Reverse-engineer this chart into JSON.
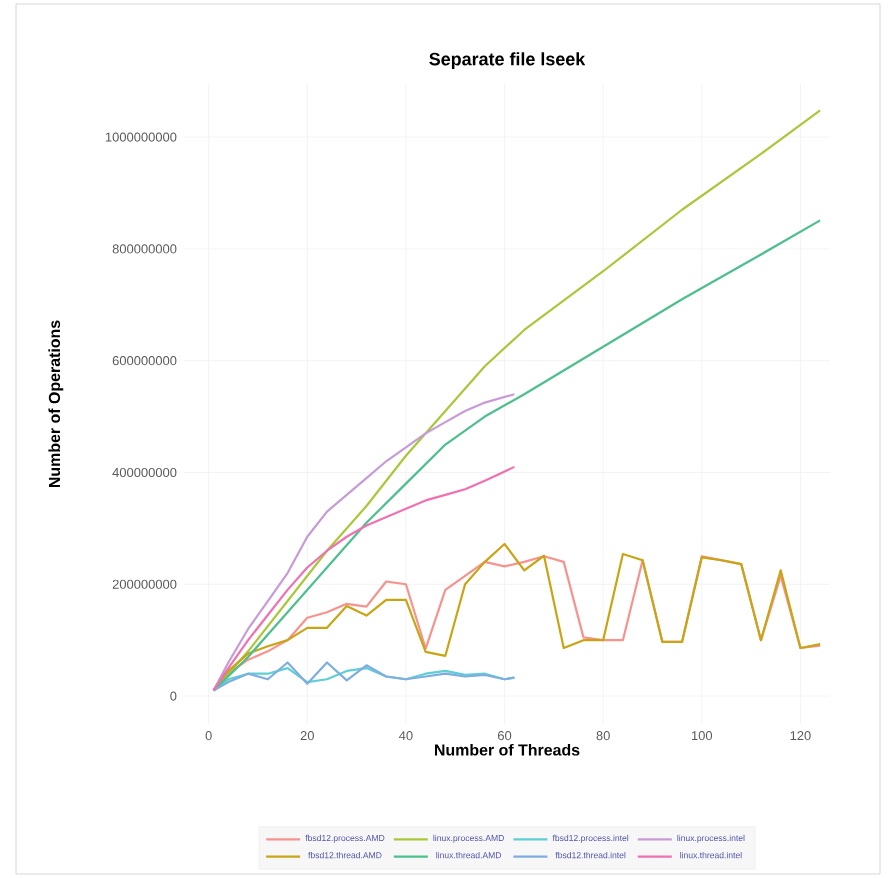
{
  "chart_data": {
    "type": "line",
    "title": "Separate file lseek",
    "xlabel": "Number of Threads",
    "ylabel": "Number of Operations",
    "xlim": [
      -5,
      126
    ],
    "ylim": [
      -50000000,
      1095000000
    ],
    "xticks": [
      0,
      20,
      40,
      60,
      80,
      100,
      120
    ],
    "yticks": [
      0,
      200000000,
      400000000,
      600000000,
      800000000,
      1000000000
    ],
    "grid": true,
    "legend": "bottom",
    "series": [
      {
        "name": "fbsd12.process.AMD",
        "color": "#f7938c",
        "x": [
          1,
          4,
          8,
          12,
          16,
          20,
          24,
          28,
          32,
          36,
          40,
          44,
          48,
          52,
          56,
          60,
          64,
          68,
          72,
          76,
          80,
          84,
          88,
          92,
          96,
          100,
          104,
          108,
          112,
          116,
          120,
          124
        ],
        "values": [
          10000000,
          40000000,
          65000000,
          80000000,
          100000000,
          140000000,
          150000000,
          165000000,
          160000000,
          205000000,
          200000000,
          85000000,
          190000000,
          215000000,
          240000000,
          232000000,
          240000000,
          250000000,
          240000000,
          105000000,
          100000000,
          100000000,
          243000000,
          97000000,
          97000000,
          250000000,
          243000000,
          236000000,
          100000000,
          215000000,
          86000000,
          90000000
        ]
      },
      {
        "name": "linux.process.AMD",
        "color": "#a8c83a",
        "x": [
          1,
          8,
          16,
          24,
          32,
          40,
          48,
          56,
          64,
          80,
          96,
          112,
          124
        ],
        "values": [
          10000000,
          80000000,
          170000000,
          260000000,
          340000000,
          430000000,
          510000000,
          590000000,
          655000000,
          760000000,
          870000000,
          970000000,
          1048000000
        ]
      },
      {
        "name": "fbsd12.process.intel",
        "color": "#5fcfd3",
        "x": [
          1,
          4,
          8,
          12,
          16,
          20,
          24,
          28,
          32,
          36,
          40,
          44,
          48,
          52,
          56,
          60,
          62
        ],
        "values": [
          10000000,
          30000000,
          40000000,
          40000000,
          50000000,
          25000000,
          30000000,
          45000000,
          50000000,
          35000000,
          30000000,
          40000000,
          45000000,
          38000000,
          40000000,
          30000000,
          33000000
        ]
      },
      {
        "name": "linux.process.intel",
        "color": "#c79ad8",
        "x": [
          1,
          4,
          8,
          12,
          16,
          20,
          24,
          28,
          32,
          36,
          40,
          44,
          48,
          52,
          56,
          62
        ],
        "values": [
          10000000,
          60000000,
          120000000,
          170000000,
          220000000,
          285000000,
          330000000,
          360000000,
          390000000,
          420000000,
          445000000,
          470000000,
          490000000,
          510000000,
          525000000,
          540000000
        ]
      },
      {
        "name": "fbsd12.thread.AMD",
        "color": "#c9a415",
        "x": [
          1,
          4,
          8,
          12,
          16,
          20,
          24,
          28,
          32,
          36,
          40,
          44,
          48,
          52,
          56,
          60,
          64,
          68,
          72,
          76,
          80,
          84,
          88,
          92,
          96,
          100,
          104,
          108,
          112,
          116,
          120,
          124
        ],
        "values": [
          11000000,
          45000000,
          76000000,
          89000000,
          100000000,
          122000000,
          122000000,
          161000000,
          144000000,
          172000000,
          172000000,
          79000000,
          72000000,
          200000000,
          240000000,
          272000000,
          225000000,
          251000000,
          86000000,
          100000000,
          100000000,
          254000000,
          243000000,
          97000000,
          97000000,
          248000000,
          243000000,
          236000000,
          100000000,
          225000000,
          86000000,
          93000000
        ]
      },
      {
        "name": "linux.thread.AMD",
        "color": "#4cbf8c",
        "x": [
          1,
          8,
          16,
          24,
          32,
          40,
          48,
          56,
          64,
          80,
          96,
          112,
          124
        ],
        "values": [
          10000000,
          70000000,
          150000000,
          230000000,
          310000000,
          380000000,
          450000000,
          500000000,
          540000000,
          625000000,
          710000000,
          790000000,
          851000000
        ]
      },
      {
        "name": "fbsd12.thread.intel",
        "color": "#7eaee0",
        "x": [
          1,
          4,
          8,
          12,
          16,
          20,
          24,
          28,
          32,
          36,
          40,
          44,
          48,
          52,
          56,
          60,
          62
        ],
        "values": [
          10000000,
          25000000,
          40000000,
          30000000,
          60000000,
          22000000,
          60000000,
          28000000,
          55000000,
          35000000,
          30000000,
          35000000,
          40000000,
          35000000,
          38000000,
          30000000,
          33000000
        ]
      },
      {
        "name": "linux.thread.intel",
        "color": "#f070b0",
        "x": [
          1,
          4,
          8,
          12,
          16,
          20,
          24,
          28,
          32,
          36,
          40,
          44,
          48,
          52,
          56,
          62
        ],
        "values": [
          10000000,
          50000000,
          100000000,
          145000000,
          190000000,
          230000000,
          260000000,
          285000000,
          305000000,
          320000000,
          335000000,
          350000000,
          360000000,
          370000000,
          385000000,
          410000000
        ]
      }
    ]
  }
}
